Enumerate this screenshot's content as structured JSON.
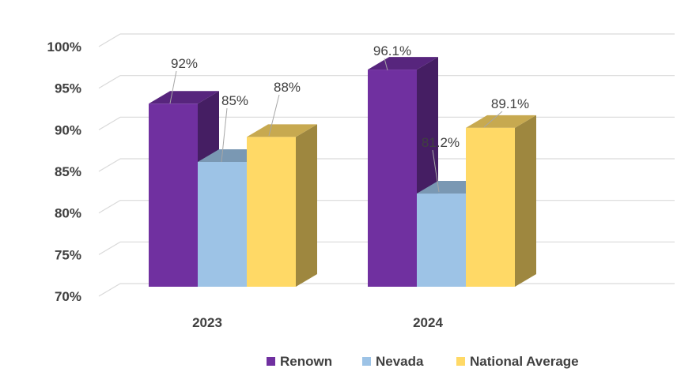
{
  "chart_data": {
    "type": "bar",
    "style": "3d-clustered-column",
    "categories": [
      "2023",
      "2024"
    ],
    "series": [
      {
        "name": "Renown",
        "values": [
          92,
          96.1
        ],
        "labels": [
          "92%",
          "96.1%"
        ],
        "color": "#7030A0"
      },
      {
        "name": "Nevada",
        "values": [
          85,
          81.2
        ],
        "labels": [
          "85%",
          "81.2%"
        ],
        "color": "#9DC3E6"
      },
      {
        "name": "National Average",
        "values": [
          88,
          89.1
        ],
        "labels": [
          "88%",
          "89.1%"
        ],
        "color": "#FFD966"
      }
    ],
    "yticks": [
      "70%",
      "75%",
      "80%",
      "85%",
      "90%",
      "95%",
      "100%"
    ],
    "ylim": [
      70,
      100
    ],
    "grid": true,
    "legend_position": "bottom"
  }
}
